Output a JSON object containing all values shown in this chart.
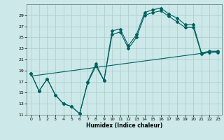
{
  "xlabel": "Humidex (Indice chaleur)",
  "bg_color": "#cce8e8",
  "grid_color": "#aacccc",
  "line_color": "#006060",
  "ylim": [
    11,
    30
  ],
  "yticks": [
    11,
    13,
    15,
    17,
    19,
    21,
    23,
    25,
    27,
    29
  ],
  "xlim": [
    -0.5,
    23.5
  ],
  "xticks": [
    0,
    1,
    2,
    3,
    4,
    5,
    6,
    7,
    8,
    9,
    10,
    11,
    12,
    13,
    14,
    15,
    16,
    17,
    18,
    19,
    20,
    21,
    22,
    23
  ],
  "trend_x": [
    0,
    23
  ],
  "trend_y": [
    18.0,
    22.5
  ],
  "curve1_x": [
    0,
    1,
    2,
    3,
    4,
    5,
    6,
    7,
    8,
    9,
    10,
    11,
    12,
    13,
    14,
    15,
    16,
    17,
    18,
    19,
    20,
    21,
    22,
    23
  ],
  "curve1_y": [
    18.5,
    15.3,
    17.5,
    14.6,
    13.0,
    12.5,
    11.2,
    17.0,
    20.2,
    17.2,
    26.2,
    26.5,
    23.5,
    25.5,
    29.5,
    30.0,
    30.3,
    29.2,
    28.5,
    27.3,
    27.3,
    22.2,
    22.5,
    22.5
  ],
  "curve2_x": [
    0,
    1,
    2,
    3,
    4,
    5,
    6,
    7,
    8,
    9,
    10,
    11,
    12,
    13,
    14,
    15,
    16,
    17,
    18,
    19,
    20,
    21,
    22,
    23
  ],
  "curve2_y": [
    18.5,
    15.3,
    17.5,
    14.6,
    13.0,
    12.5,
    11.2,
    16.8,
    19.8,
    17.2,
    25.5,
    26.0,
    23.0,
    25.0,
    29.0,
    29.5,
    29.8,
    28.8,
    27.8,
    26.8,
    26.8,
    22.0,
    22.3,
    22.3
  ]
}
